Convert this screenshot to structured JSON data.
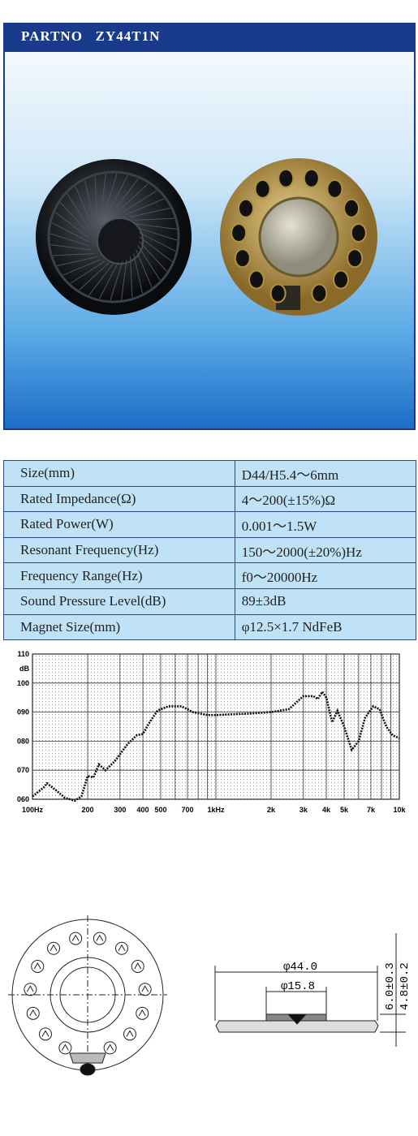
{
  "header": {
    "title": "PARTNO   ZY44T1N"
  },
  "specs": {
    "rows": [
      [
        "Size(mm)",
        "D44/H5.4～6mm"
      ],
      [
        "Rated Impedance(Ω)",
        "4～200(±15%)Ω"
      ],
      [
        "Rated Power(W)",
        "0.001～1.5W"
      ],
      [
        "Resonant Frequency(Hz)",
        "150～2000(±20%)Hz"
      ],
      [
        "Frequency Range(Hz)",
        "f0～20000Hz"
      ],
      [
        "Sound Pressure Level(dB)",
        "89±3dB"
      ],
      [
        "Magnet Size(mm)",
        "φ12.5×1.7 NdFeB"
      ]
    ]
  },
  "response_chart": {
    "type": "line",
    "y_unit": "dB",
    "x_log": true,
    "xlim": [
      100,
      10000
    ],
    "ylim": [
      60,
      110
    ],
    "yticks": [
      110,
      100,
      {
        "value": 90,
        "label": "090"
      },
      {
        "value": 80,
        "label": "080"
      },
      {
        "value": 70,
        "label": "070"
      },
      {
        "value": 60,
        "label": "060"
      }
    ],
    "xticks": [
      {
        "value": 100,
        "label": "100Hz"
      },
      200,
      300,
      400,
      500,
      700,
      {
        "value": 1000,
        "label": "1kHz"
      },
      {
        "value": 2000,
        "label": "2k"
      },
      {
        "value": 3000,
        "label": "3k"
      },
      {
        "value": 4000,
        "label": "4k"
      },
      {
        "value": 5000,
        "label": "5k"
      },
      {
        "value": 7000,
        "label": "7k"
      },
      {
        "value": 10000,
        "label": "10k"
      }
    ],
    "xgrid": [
      100,
      200,
      300,
      400,
      500,
      600,
      700,
      800,
      900,
      1000,
      2000,
      3000,
      4000,
      5000,
      6000,
      7000,
      8000,
      9000,
      10000
    ],
    "ygrid": [
      60,
      70,
      80,
      90,
      100,
      110
    ],
    "x": [
      100,
      115,
      120,
      135,
      150,
      170,
      185,
      200,
      215,
      230,
      250,
      280,
      330,
      370,
      400,
      430,
      480,
      550,
      650,
      750,
      900,
      1000,
      1500,
      2000,
      2500,
      3000,
      3400,
      3600,
      3800,
      4000,
      4300,
      4600,
      5000,
      5500,
      6000,
      6500,
      7200,
      7800,
      8500,
      9200,
      10000
    ],
    "values": [
      61,
      64,
      65.5,
      63,
      60.5,
      59.5,
      61,
      68,
      67.5,
      72,
      70,
      73,
      79,
      82,
      82.5,
      86,
      90.5,
      92,
      92,
      90,
      89,
      89,
      89.5,
      90,
      91,
      95.5,
      95.5,
      94.5,
      97,
      95,
      86.5,
      90.5,
      85,
      77,
      80,
      88,
      92,
      91,
      85,
      82,
      81
    ],
    "color": "#111111"
  },
  "drawing": {
    "outer_diameter": "φ44.0",
    "inner_diameter": "φ15.8",
    "height_total": "6.0±0.3",
    "height_body": "4.8±0.2"
  }
}
